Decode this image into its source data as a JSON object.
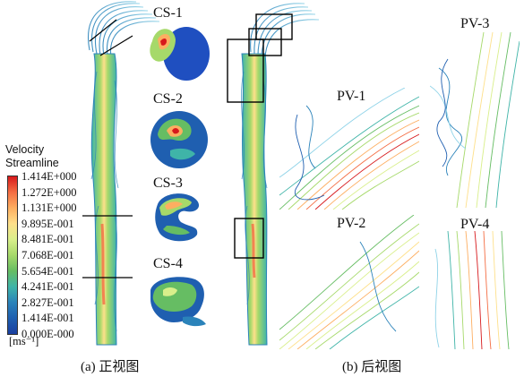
{
  "legend": {
    "title_line1": "Velocity",
    "title_line2": "Streamline",
    "ticks": [
      "1.414E+000",
      "1.272E+000",
      "1.131E+000",
      "9.895E-001",
      "8.481E-001",
      "7.068E-001",
      "5.654E-001",
      "4.241E-001",
      "2.827E-001",
      "1.414E-001",
      "0.000E-000"
    ],
    "unit": "[ms⁻¹]",
    "colors": [
      "#d7191c",
      "#f46d43",
      "#fdae61",
      "#fee08b",
      "#d9ef8b",
      "#a6d96a",
      "#66bd63",
      "#3fb4a8",
      "#2b83ba",
      "#1f5fb0",
      "#1a3fa0"
    ]
  },
  "panel_a": {
    "caption": "(a) 正视图",
    "sections": [
      {
        "label": "CS-1"
      },
      {
        "label": "CS-2"
      },
      {
        "label": "CS-3"
      },
      {
        "label": "CS-4"
      }
    ]
  },
  "panel_b": {
    "caption": "(b) 后视图",
    "views": [
      {
        "label": "PV-1"
      },
      {
        "label": "PV-2"
      },
      {
        "label": "PV-3"
      },
      {
        "label": "PV-4"
      }
    ]
  }
}
